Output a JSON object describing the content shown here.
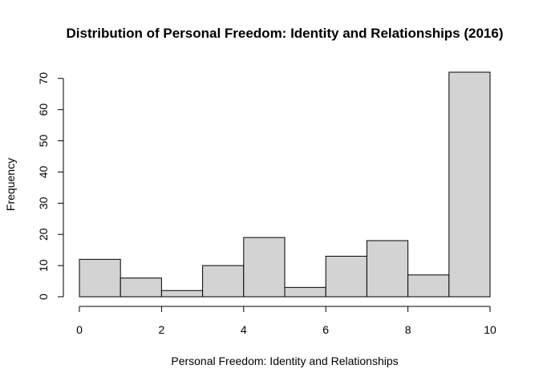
{
  "chart_data": {
    "type": "bar",
    "subtype": "histogram",
    "title": "Distribution of Personal Freedom: Identity and Relationships (2016)",
    "xlabel": "Personal Freedom: Identity and Relationships",
    "ylabel": "Frequency",
    "bins": [
      {
        "start": 0,
        "end": 1,
        "count": 12
      },
      {
        "start": 1,
        "end": 2,
        "count": 6
      },
      {
        "start": 2,
        "end": 3,
        "count": 2
      },
      {
        "start": 3,
        "end": 4,
        "count": 10
      },
      {
        "start": 4,
        "end": 5,
        "count": 19
      },
      {
        "start": 5,
        "end": 6,
        "count": 3
      },
      {
        "start": 6,
        "end": 7,
        "count": 13
      },
      {
        "start": 7,
        "end": 8,
        "count": 18
      },
      {
        "start": 8,
        "end": 9,
        "count": 7
      },
      {
        "start": 9,
        "end": 10,
        "count": 72
      }
    ],
    "xlim": [
      0,
      10
    ],
    "ylim": [
      0,
      72
    ],
    "x_ticks": [
      0,
      2,
      4,
      6,
      8,
      10
    ],
    "y_ticks": [
      0,
      10,
      20,
      30,
      40,
      50,
      60,
      70
    ],
    "bar_color": "#d3d3d3",
    "bar_edge_color": "#000000",
    "grid": false,
    "legend": "none"
  }
}
